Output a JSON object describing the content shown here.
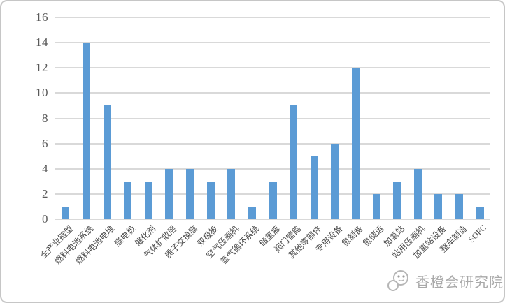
{
  "chart_data": {
    "type": "bar",
    "categories": [
      "全产业链型",
      "燃料电池系统",
      "燃料电池电堆",
      "膜电极",
      "催化剂",
      "气体扩散层",
      "质子交换膜",
      "双极板",
      "空气压缩机",
      "氢气循环系统",
      "储氢瓶",
      "阀门管路",
      "其他零部件",
      "专用设备",
      "氢制备",
      "氢储运",
      "加氢站",
      "站用压缩机",
      "加氢站设备",
      "整车制造",
      "SOFC"
    ],
    "values": [
      1,
      14,
      9,
      3,
      3,
      4,
      4,
      3,
      4,
      1,
      3,
      9,
      5,
      6,
      12,
      2,
      3,
      4,
      2,
      2,
      1
    ],
    "title": "",
    "xlabel": "",
    "ylabel": "",
    "ylim": [
      0,
      16
    ],
    "yticks": [
      0,
      2,
      4,
      6,
      8,
      10,
      12,
      14,
      16
    ],
    "grid": true,
    "legend": "none",
    "bar_color": "#5b9bd5",
    "gridline_color": "#d9d9d9",
    "tick_label_color": "#595959"
  },
  "watermark": {
    "text": "香橙会研究院",
    "logo": "orange-face-logo"
  }
}
